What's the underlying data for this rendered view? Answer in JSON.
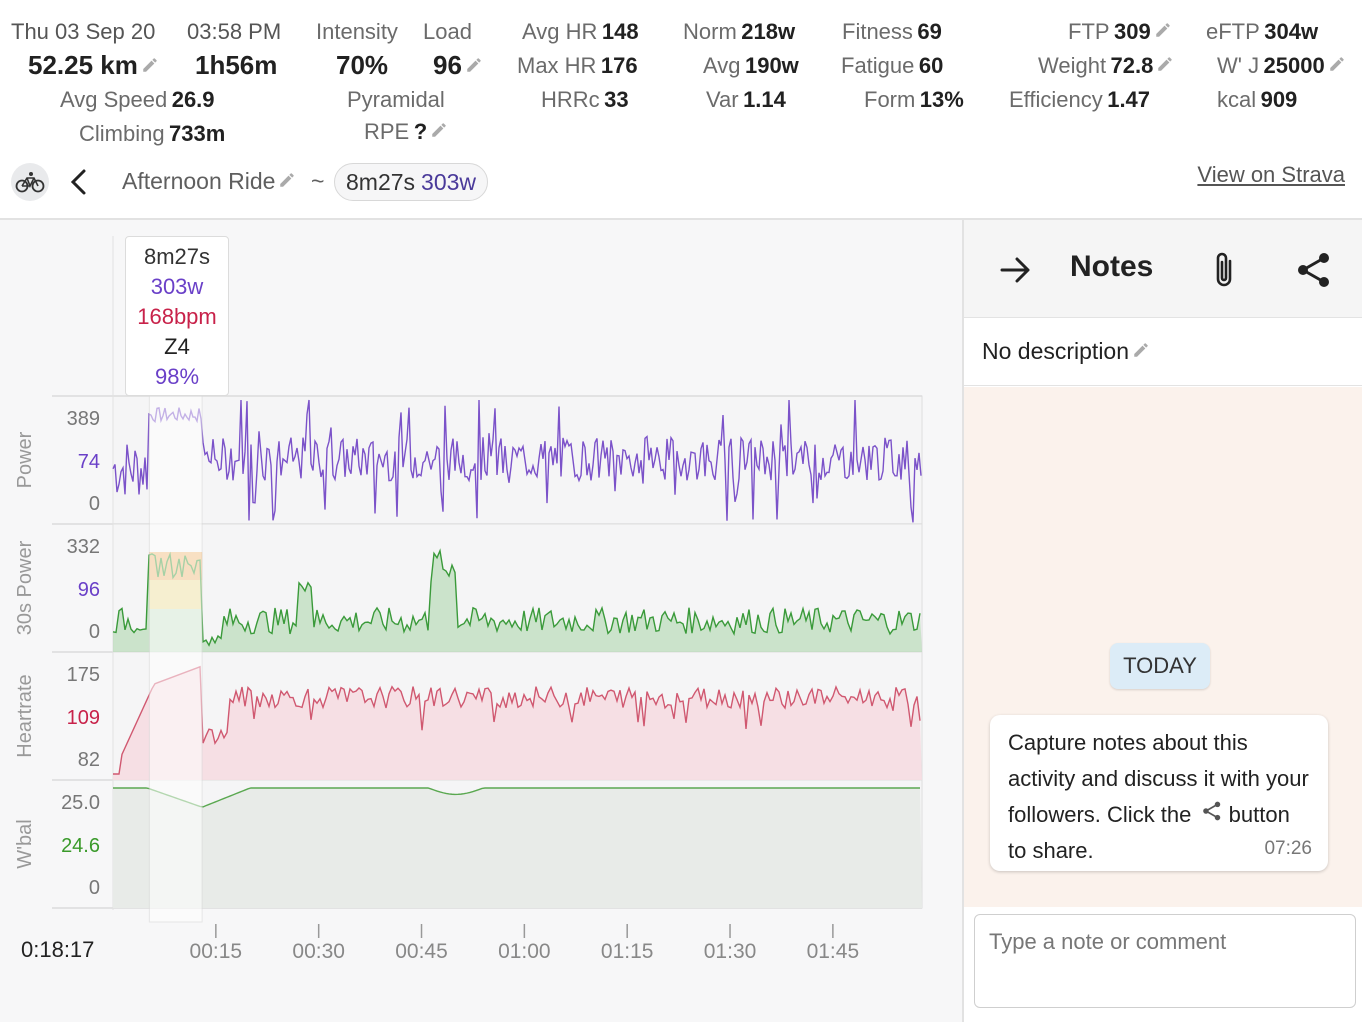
{
  "header": {
    "date": "Thu 03 Sep 20",
    "time": "03:58 PM",
    "distance": "52.25 km",
    "duration": "1h56m",
    "avg_speed_label": "Avg Speed",
    "avg_speed_value": "26.9",
    "climbing_label": "Climbing",
    "climbing_value": "733m",
    "intensity_label": "Intensity",
    "intensity_value": "70%",
    "load_label": "Load",
    "load_value": "96",
    "pyramidal": "Pyramidal",
    "rpe_label": "RPE",
    "rpe_value": "?",
    "avg_hr_label": "Avg HR",
    "avg_hr_value": "148",
    "max_hr_label": "Max HR",
    "max_hr_value": "176",
    "hrrc_label": "HRRc",
    "hrrc_value": "33",
    "norm_label": "Norm",
    "norm_value": "218w",
    "avg_label": "Avg",
    "avg_value": "190w",
    "var_label": "Var",
    "var_value": "1.14",
    "fitness_label": "Fitness",
    "fitness_value": "69",
    "fatigue_label": "Fatigue",
    "fatigue_value": "60",
    "form_label": "Form",
    "form_value": "13%",
    "ftp_label": "FTP",
    "ftp_value": "309",
    "weight_label": "Weight",
    "weight_value": "72.8",
    "efficiency_label": "Efficiency",
    "efficiency_value": "1.47",
    "eftp_label": "eFTP",
    "eftp_value": "304w",
    "wj_label": "W' J",
    "wj_value": "25000",
    "kcal_label": "kcal",
    "kcal_value": "909"
  },
  "activity": {
    "title": "Afternoon Ride",
    "tilde": "~",
    "chip_duration": "8m27s",
    "chip_watts": "303w",
    "strava_link": "View on Strava"
  },
  "tooltip": {
    "duration": "8m27s",
    "watts": "303w",
    "bpm": "168bpm",
    "zone": "Z4",
    "pct": "98%"
  },
  "chart_data": {
    "type": "line",
    "current_time": "0:18:17",
    "x_ticks": [
      "00:15",
      "00:30",
      "00:45",
      "01:00",
      "01:15",
      "01:30",
      "01:45"
    ],
    "selection": {
      "start": "00:05",
      "end": "00:13"
    },
    "panels": [
      {
        "ylabel": "Power",
        "ticks": [
          "389",
          "74",
          "0"
        ],
        "color": "#7b52c9"
      },
      {
        "ylabel": "30s Power",
        "ticks": [
          "332",
          "96",
          "0"
        ],
        "color": "#3a9a3a"
      },
      {
        "ylabel": "Heartrate",
        "ticks": [
          "175",
          "109",
          "82"
        ],
        "color": "#d05870"
      },
      {
        "ylabel": "W'bal",
        "ticks": [
          "25.0",
          "24.6",
          "0"
        ],
        "color": "#5aa850"
      }
    ]
  },
  "notes": {
    "title": "Notes",
    "description": "No description",
    "today": "TODAY",
    "message": "Capture notes about this activity and discuss it with your followers. Click the",
    "message_end": "button to share.",
    "message_time": "07:26",
    "input_placeholder": "Type a note or comment"
  },
  "icons": [
    "pencil-icon",
    "bike-icon",
    "back-arrow-icon",
    "forward-arrow-icon",
    "paperclip-icon",
    "share-icon"
  ]
}
